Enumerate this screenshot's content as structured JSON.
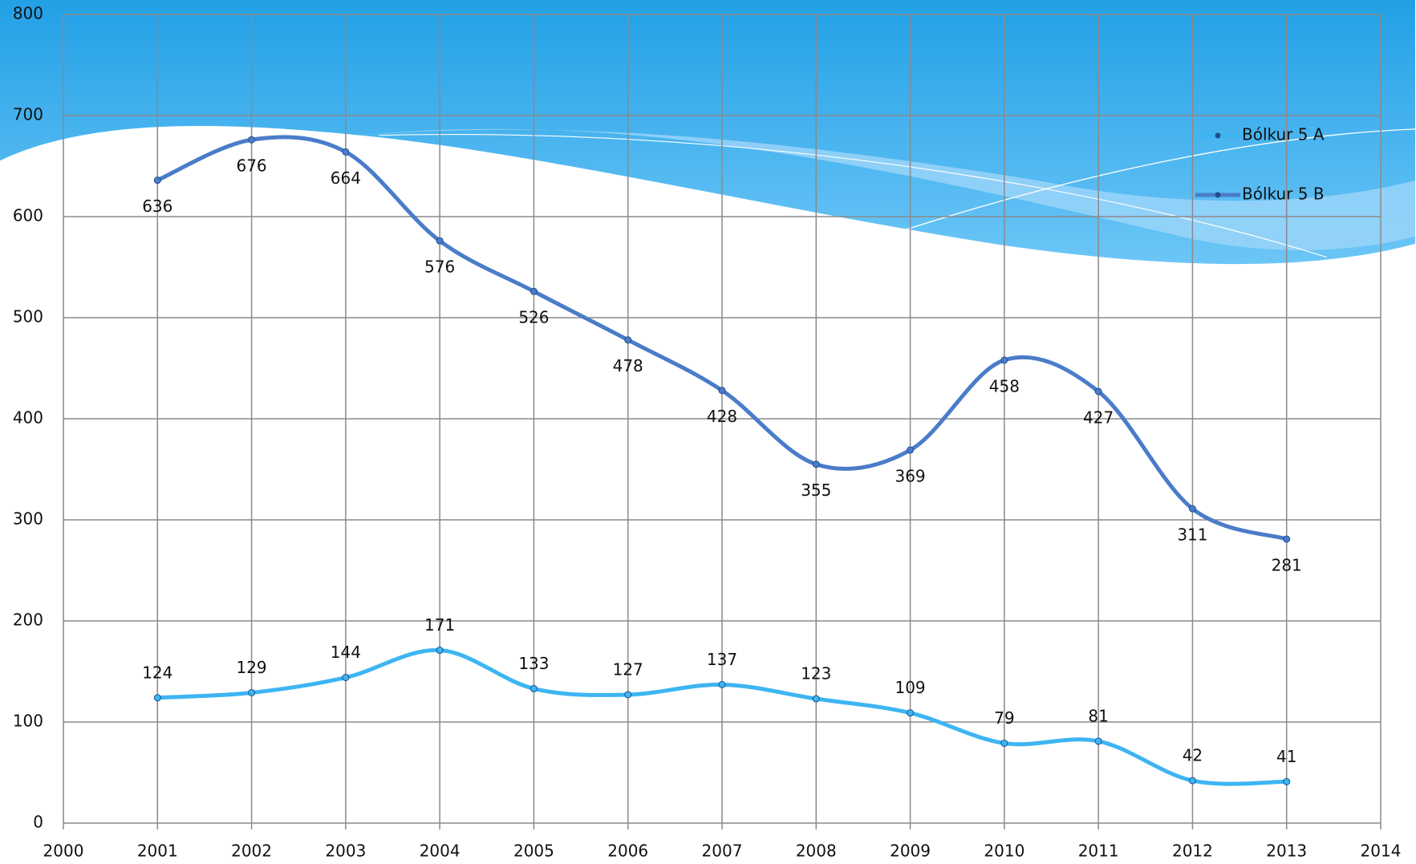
{
  "chart_data": {
    "type": "line",
    "x": [
      2001,
      2002,
      2003,
      2004,
      2005,
      2006,
      2007,
      2008,
      2009,
      2010,
      2011,
      2012,
      2013
    ],
    "series": [
      {
        "name": "Bólkur 5 A",
        "color": "#3db5f2",
        "values": [
          124,
          129,
          144,
          171,
          133,
          127,
          137,
          123,
          109,
          79,
          81,
          42,
          41
        ]
      },
      {
        "name": "Bólkur 5 B",
        "color": "#4a7cc9",
        "values": [
          636,
          676,
          664,
          576,
          526,
          478,
          428,
          355,
          369,
          458,
          427,
          311,
          281
        ]
      }
    ],
    "xlim": [
      2000,
      2014
    ],
    "xticks": [
      2000,
      2001,
      2002,
      2003,
      2004,
      2005,
      2006,
      2007,
      2008,
      2009,
      2010,
      2011,
      2012,
      2013,
      2014
    ],
    "ylim": [
      0,
      800
    ],
    "yticks": [
      0,
      100,
      200,
      300,
      400,
      500,
      600,
      700,
      800
    ],
    "grid": true,
    "legend": "top-right"
  }
}
